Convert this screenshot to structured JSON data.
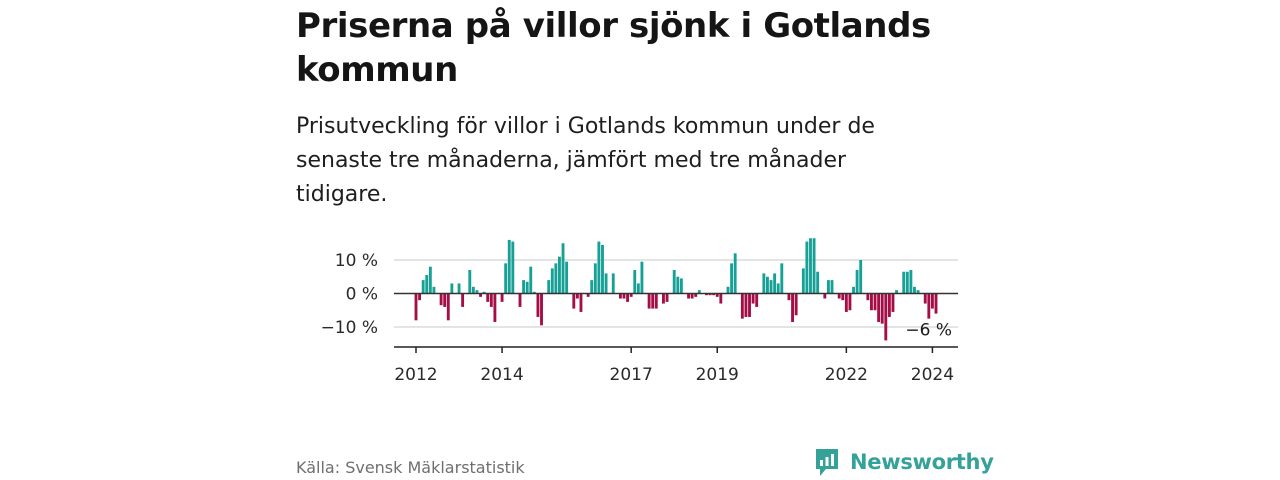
{
  "header": {
    "title": "Priserna på villor sjönk i Gotlands kommun",
    "subtitle": "Prisutveckling för villor i Gotlands kommun under de senaste tre månaderna, jämfört med tre månader tidigare."
  },
  "footer": {
    "source": "Källa: Svensk Mäklarstatistik",
    "brand": "Newsworthy"
  },
  "colors": {
    "positive": "#16a096",
    "negative": "#a40d45",
    "brand": "#35a29a"
  },
  "chart_data": {
    "type": "bar",
    "title": "",
    "xlabel": "",
    "ylabel": "",
    "ylim": [
      -15,
      17
    ],
    "yticks": [
      10,
      0,
      -10
    ],
    "ytick_labels": [
      "10 %",
      "0 %",
      "−10 %"
    ],
    "x_tick_labels": [
      "2012",
      "2014",
      "2017",
      "2019",
      "2022",
      "2024"
    ],
    "x_tick_values": [
      2012,
      2014,
      2017,
      2019,
      2022,
      2024
    ],
    "grid": true,
    "last_value_label": "−6 %",
    "series": [
      {
        "x_start": 2012.0,
        "x_step_months": 1,
        "values": [
          -8,
          -2,
          4,
          5.5,
          8,
          2,
          0,
          -3.5,
          -4,
          -8,
          3,
          0,
          3,
          -4,
          0,
          7,
          2,
          1,
          -1,
          0.5,
          -2.5,
          -4,
          -8.5,
          0,
          -2.5,
          9,
          16,
          15.5,
          0,
          -4,
          4,
          3.5,
          8,
          0.5,
          -7,
          -9.5,
          0,
          4,
          7.5,
          9,
          11,
          15,
          9.5,
          0,
          -4.5,
          -1.5,
          -5.5,
          0,
          -1,
          4,
          9,
          15.5,
          14.5,
          6,
          0,
          6,
          0,
          -1.5,
          -1.5,
          -2.5,
          -1,
          7,
          3,
          9.5,
          0,
          -4.5,
          -4.5,
          -4.5,
          0,
          -3,
          -2.5,
          0,
          7,
          5,
          4.5,
          0,
          -1.5,
          -1.5,
          -1,
          1,
          0,
          -0.5,
          -0.5,
          -0.5,
          -1,
          -3,
          0,
          2,
          9,
          12,
          0,
          -7.5,
          -7,
          -7,
          -3,
          -4,
          0,
          6,
          5,
          4,
          6,
          3,
          9,
          0,
          -2,
          -8.5,
          -6.5,
          0,
          7.5,
          15.5,
          16.5,
          16.5,
          6.5,
          0,
          -1.5,
          4,
          4,
          0,
          -1.5,
          -2,
          -5.5,
          -5,
          2,
          7,
          10,
          0,
          -2,
          -5,
          -5,
          -8.5,
          -9,
          -14,
          -7,
          -5.5,
          1,
          0,
          6.5,
          6.5,
          7,
          2,
          1,
          0,
          -3,
          -7.5,
          -4.5,
          -6
        ]
      }
    ]
  }
}
